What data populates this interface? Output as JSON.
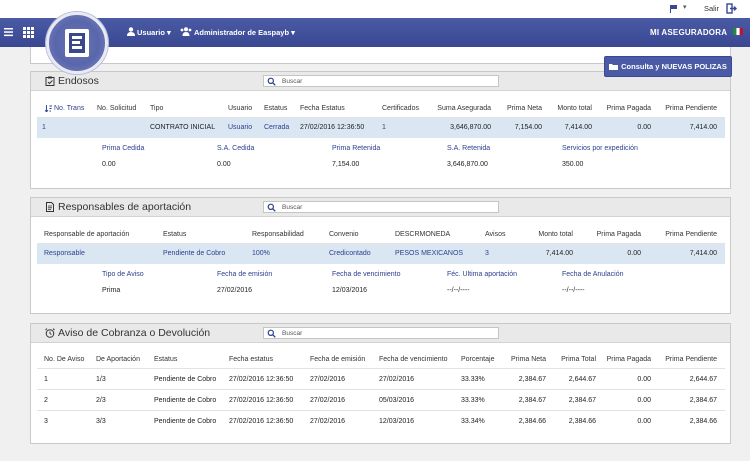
{
  "util": {
    "salir": "Salir"
  },
  "nav": {
    "usuario": "Usuario",
    "admin": "Administrador de Easpayb",
    "company": "MI ASEGURADORA"
  },
  "consult_button": "Consulta y NUEVAS POLIZAS",
  "colors": {
    "nav": "#3a4892",
    "highlight": "#dbe6f3",
    "panel_header": "#e9e9e9"
  },
  "endosos": {
    "title": "Endosos",
    "search_placeholder": "Buscar",
    "headers": [
      "No. Trans",
      "No. Solicitud",
      "Tipo",
      "Usuario",
      "Estatus",
      "Fecha Estatus",
      "Certificados",
      "Suma Asegurada",
      "Prima Neta",
      "Monto total",
      "Prima Pagada",
      "Prima Pendiente"
    ],
    "row": [
      "1",
      "",
      "CONTRATO INICIAL",
      "Usuario",
      "Cerrada",
      "27/02/2016 12:36:50",
      "1",
      "3,646,870.00",
      "7,154.00",
      "7,414.00",
      "0.00",
      "7,414.00"
    ],
    "detail_labels": [
      "Prima Cedida",
      "S.A. Cedida",
      "Prima Retenida",
      "S.A. Retenida",
      "Servicios por expedición"
    ],
    "detail_values": [
      "0.00",
      "0.00",
      "7,154.00",
      "3,646,870.00",
      "350.00"
    ]
  },
  "responsables": {
    "title": "Responsables de aportación",
    "search_placeholder": "Buscar",
    "headers": [
      "Responsable de aportación",
      "Estatus",
      "Responsabilidad",
      "Convenio",
      "DESCRMONEDA",
      "Avisos",
      "Monto total",
      "Prima Pagada",
      "Prima Pendiente"
    ],
    "row": [
      "Responsable",
      "Pendiente de Cobro",
      "100%",
      "Credicontado",
      "PESOS MEXICANOS",
      "3",
      "7,414.00",
      "0.00",
      "7,414.00"
    ],
    "detail_labels": [
      "Tipo de Aviso",
      "Fecha de emisión",
      "Fecha de vencimiento",
      "Féc. Ultima aportación",
      "Fecha de Anulación"
    ],
    "detail_values": [
      "Prima",
      "27/02/2016",
      "12/03/2016",
      "--/--/----",
      "--/--/----"
    ]
  },
  "avisos": {
    "title": "Aviso de Cobranza o Devolución",
    "search_placeholder": "Buscar",
    "headers": [
      "No. De Aviso",
      "De Aportación",
      "Estatus",
      "Fecha estatus",
      "Fecha de emisión",
      "Fecha de vencimiento",
      "Porcentaje",
      "Prima Neta",
      "Prima Total",
      "Prima Pagada",
      "Prima Pendiente"
    ],
    "rows": [
      [
        "1",
        "1/3",
        "Pendiente de Cobro",
        "27/02/2016 12:36:50",
        "27/02/2016",
        "27/02/2016",
        "33.33%",
        "2,384.67",
        "2,644.67",
        "0.00",
        "2,644.67"
      ],
      [
        "2",
        "2/3",
        "Pendiente de Cobro",
        "27/02/2016 12:36:50",
        "27/02/2016",
        "05/03/2016",
        "33.33%",
        "2,384.67",
        "2,384.67",
        "0.00",
        "2,384.67"
      ],
      [
        "3",
        "3/3",
        "Pendiente de Cobro",
        "27/02/2016 12:36:50",
        "27/02/2016",
        "12/03/2016",
        "33.34%",
        "2,384.66",
        "2,384.66",
        "0.00",
        "2,384.66"
      ]
    ]
  }
}
